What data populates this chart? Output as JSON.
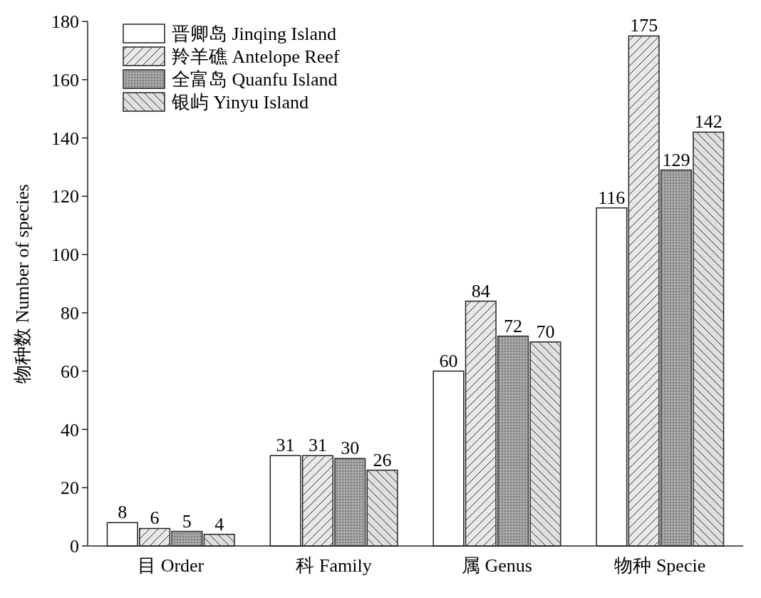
{
  "chart_data": {
    "type": "bar",
    "ylabel": "物种数 Number of species",
    "categories": [
      "目 Order",
      "科 Family",
      "属 Genus",
      "物种 Specie"
    ],
    "series": [
      {
        "name": "晋卿岛 Jinqing Island",
        "color": "#ffffff",
        "values": [
          8,
          31,
          60,
          116
        ]
      },
      {
        "name": "羚羊礁 Antelope Reef",
        "color": "#e8e8e8",
        "values": [
          6,
          31,
          84,
          175
        ]
      },
      {
        "name": "全富岛 Quanfu Island",
        "color": "#a8a8a8",
        "values": [
          5,
          30,
          72,
          129
        ]
      },
      {
        "name": "银屿 Yinyu Island",
        "color": "#e0e0e0",
        "values": [
          4,
          26,
          70,
          142
        ]
      }
    ],
    "ylim": [
      0,
      180
    ],
    "yticks": [
      0,
      20,
      40,
      60,
      80,
      100,
      120,
      140,
      160,
      180
    ],
    "data_labels": true,
    "legend": "top left",
    "grid": false
  }
}
